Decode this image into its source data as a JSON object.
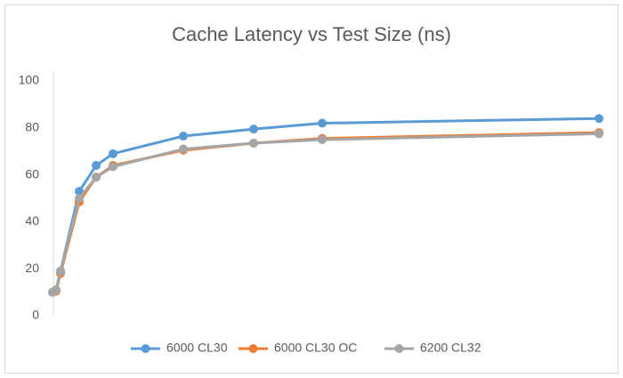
{
  "chart_data": {
    "type": "line",
    "title": "Cache Latency vs Test Size (ns)",
    "x": [
      1,
      5,
      10,
      31,
      50,
      69,
      148,
      227,
      304,
      615
    ],
    "xlim": [
      0,
      625
    ],
    "series": [
      {
        "name": "6000 CL30",
        "color": "#5b9bd5",
        "values": [
          10,
          11,
          19,
          53,
          64,
          69,
          76.5,
          79.5,
          82,
          84
        ]
      },
      {
        "name": "6000 CL30 OC",
        "color": "#ed7d31",
        "values": [
          10,
          10.5,
          18,
          48.5,
          59,
          64,
          70.5,
          73.5,
          75.5,
          78
        ]
      },
      {
        "name": "6200 CL32",
        "color": "#a5a5a5",
        "values": [
          10,
          11,
          19,
          50,
          59,
          63.5,
          71,
          73.5,
          75,
          77.5
        ]
      }
    ],
    "ylim": [
      0,
      100
    ],
    "yticks": [
      0,
      20,
      40,
      60,
      80,
      100
    ],
    "grid": false,
    "legend": "bottom"
  }
}
